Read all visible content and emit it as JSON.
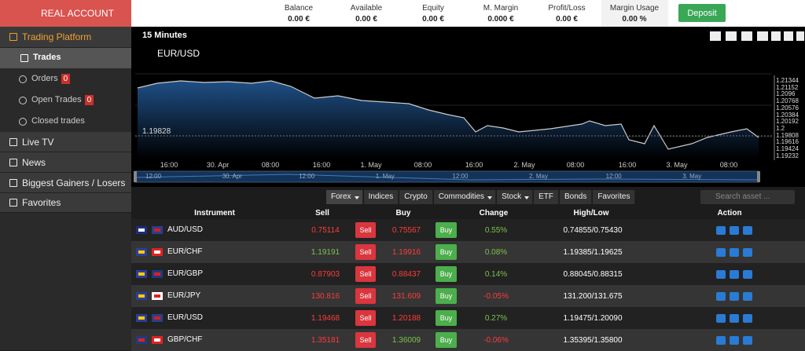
{
  "account": "REAL ACCOUNT",
  "sidebar": [
    {
      "label": "Trading Platform"
    },
    {
      "label": "Trades"
    },
    {
      "label": "Orders",
      "badge": 0
    },
    {
      "label": "Open Trades",
      "badge": 0
    },
    {
      "label": "Closed trades"
    },
    {
      "label": "Live TV"
    },
    {
      "label": "News"
    },
    {
      "label": "Biggest Gainers / Losers"
    },
    {
      "label": "Favorites"
    }
  ],
  "stats": [
    {
      "label": "Balance",
      "value": "0.00 €"
    },
    {
      "label": "Available",
      "value": "0.00 €"
    },
    {
      "label": "Equity",
      "value": "0.00 €"
    },
    {
      "label": "M. Margin",
      "value": "0.000 €"
    },
    {
      "label": "Profit/Loss",
      "value": "0.00 €"
    },
    {
      "label": "Margin Usage",
      "value": "0.00 %"
    }
  ],
  "deposit": "Deposit",
  "chart": {
    "interval": "15 Minutes",
    "symbol": "EUR/USD",
    "price_label": "1.19828",
    "yticks": [
      "1.21344",
      "1.21152",
      "1.2096",
      "1.20768",
      "1.20576",
      "1.20384",
      "1.20192",
      "1.2",
      "1.19808",
      "1.19616",
      "1.19424",
      "1.19232"
    ],
    "xticks": [
      "16:00",
      "30. Apr",
      "08:00",
      "16:00",
      "1. May",
      "08:00",
      "16:00",
      "2. May",
      "08:00",
      "16:00",
      "3. May",
      "08:00"
    ],
    "navigator_ticks": [
      "12:00",
      "30. Apr",
      "12:00",
      "1. May",
      "12:00",
      "2. May",
      "12:00",
      "3. May"
    ]
  },
  "tabs": [
    "Forex",
    "Indices",
    "Crypto",
    "Commodities",
    "Stock",
    "ETF",
    "Bonds",
    "Favorites"
  ],
  "search_placeholder": "Search asset ...",
  "table": {
    "columns": [
      "Instrument",
      "Sell",
      "Buy",
      "Change",
      "High/Low",
      "Action"
    ],
    "sell_button": "Sell",
    "buy_button": "Buy",
    "rows": [
      {
        "instrument": "AUD/USD",
        "sell": "0.75114",
        "sell_color": "#ff3b3b",
        "buy": "0.75567",
        "buy_color": "#ff3b3b",
        "change": "0.55%",
        "change_color": "#7ec24a",
        "high_low": "0.74855/0.75430"
      },
      {
        "instrument": "EUR/CHF",
        "sell": "1.19191",
        "sell_color": "#7ec24a",
        "buy": "1.19916",
        "buy_color": "#ff3b3b",
        "change": "0.08%",
        "change_color": "#7ec24a",
        "high_low": "1.19385/1.19625"
      },
      {
        "instrument": "EUR/GBP",
        "sell": "0.87903",
        "sell_color": "#ff3b3b",
        "buy": "0.88437",
        "buy_color": "#ff3b3b",
        "change": "0.14%",
        "change_color": "#7ec24a",
        "high_low": "0.88045/0.88315"
      },
      {
        "instrument": "EUR/JPY",
        "sell": "130.816",
        "sell_color": "#ff3b3b",
        "buy": "131.609",
        "buy_color": "#ff3b3b",
        "change": "-0.05%",
        "change_color": "#ff3b3b",
        "high_low": "131.200/131.675"
      },
      {
        "instrument": "EUR/USD",
        "sell": "1.19468",
        "sell_color": "#ff3b3b",
        "buy": "1.20188",
        "buy_color": "#ff3b3b",
        "change": "0.27%",
        "change_color": "#7ec24a",
        "high_low": "1.19475/1.20090"
      },
      {
        "instrument": "GBP/CHF",
        "sell": "1.35181",
        "sell_color": "#ff3b3b",
        "buy": "1.36009",
        "buy_color": "#7ec24a",
        "change": "-0.06%",
        "change_color": "#ff3b3b",
        "high_low": "1.35395/1.35800"
      }
    ]
  }
}
